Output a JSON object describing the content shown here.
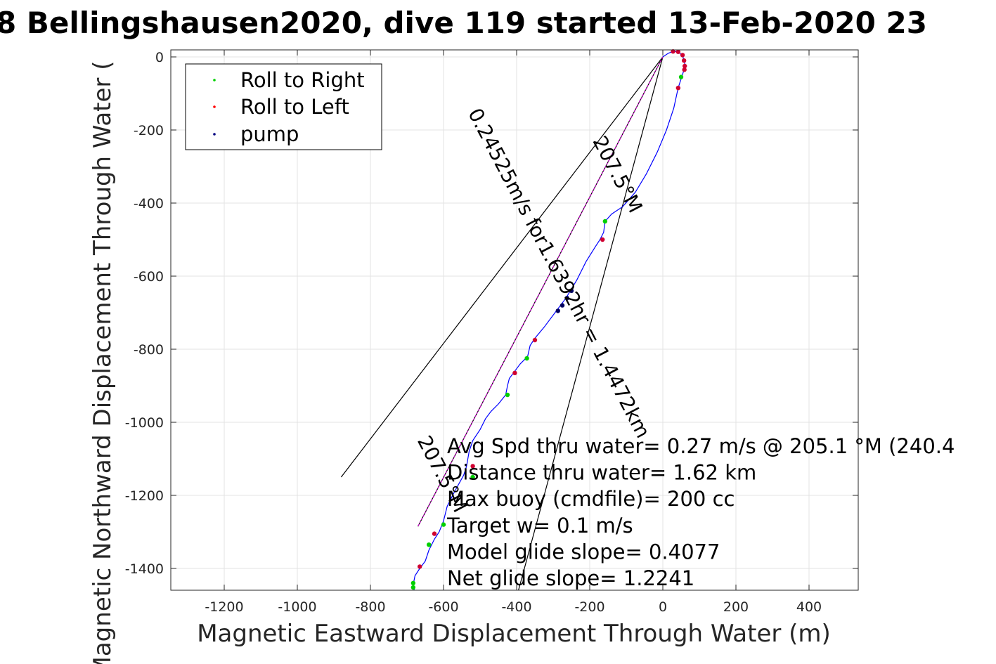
{
  "chart_data": {
    "type": "line",
    "title": "8 Bellingshausen2020, dive 119 started 13-Feb-2020 23",
    "xlabel": "Magnetic Eastward Displacement Through Water (m)",
    "ylabel": "Magnetic Northward Displacement Through Water (",
    "xlim": [
      -1340,
      540
    ],
    "ylim": [
      -1460,
      20
    ],
    "xticks": [
      -1200,
      -1000,
      -800,
      -600,
      -400,
      -200,
      0,
      200,
      400
    ],
    "yticks": [
      0,
      -200,
      -400,
      -600,
      -800,
      -1000,
      -1200,
      -1400
    ],
    "grid": true,
    "legend": {
      "position": "top-left",
      "entries": [
        {
          "label": "Roll to Right",
          "color": "#00d000"
        },
        {
          "label": "Roll to Left",
          "color": "#ff0000"
        },
        {
          "label": "pump",
          "color": "#000080"
        }
      ]
    },
    "track_color": "#0000ff",
    "roll_right_color": "#00d000",
    "roll_left_color": "#d00030",
    "pump_color": "#000060",
    "heading_line_color": "#000000",
    "avg_line_color": "#cc00cc",
    "track": [
      [
        0,
        0
      ],
      [
        15,
        10
      ],
      [
        30,
        16
      ],
      [
        45,
        12
      ],
      [
        55,
        0
      ],
      [
        60,
        -15
      ],
      [
        58,
        -35
      ],
      [
        50,
        -60
      ],
      [
        42,
        -85
      ],
      [
        30,
        -140
      ],
      [
        10,
        -200
      ],
      [
        -15,
        -260
      ],
      [
        -45,
        -320
      ],
      [
        -75,
        -370
      ],
      [
        -110,
        -410
      ],
      [
        -140,
        -430
      ],
      [
        -158,
        -450
      ],
      [
        -162,
        -480
      ],
      [
        -172,
        -500
      ],
      [
        -185,
        -520
      ],
      [
        -210,
        -560
      ],
      [
        -235,
        -610
      ],
      [
        -265,
        -660
      ],
      [
        -295,
        -700
      ],
      [
        -325,
        -740
      ],
      [
        -350,
        -770
      ],
      [
        -363,
        -790
      ],
      [
        -370,
        -820
      ],
      [
        -390,
        -840
      ],
      [
        -405,
        -860
      ],
      [
        -420,
        -880
      ],
      [
        -425,
        -900
      ],
      [
        -430,
        -925
      ],
      [
        -450,
        -950
      ],
      [
        -470,
        -970
      ],
      [
        -485,
        -990
      ],
      [
        -500,
        -1020
      ],
      [
        -520,
        -1050
      ],
      [
        -530,
        -1080
      ],
      [
        -537,
        -1120
      ],
      [
        -545,
        -1145
      ],
      [
        -570,
        -1190
      ],
      [
        -590,
        -1230
      ],
      [
        -600,
        -1270
      ],
      [
        -612,
        -1300
      ],
      [
        -625,
        -1320
      ],
      [
        -640,
        -1350
      ],
      [
        -650,
        -1380
      ],
      [
        -665,
        -1400
      ],
      [
        -678,
        -1420
      ],
      [
        -683,
        -1445
      ],
      [
        -680,
        -1460
      ]
    ],
    "roll_left_points": [
      [
        28,
        15
      ],
      [
        42,
        14
      ],
      [
        54,
        5
      ],
      [
        58,
        -10
      ],
      [
        60,
        -25
      ],
      [
        59,
        -35
      ],
      [
        42,
        -85
      ],
      [
        -165,
        -500
      ],
      [
        -350,
        -775
      ],
      [
        -405,
        -865
      ],
      [
        -520,
        -1120
      ],
      [
        -625,
        -1305
      ],
      [
        -665,
        -1395
      ]
    ],
    "roll_right_points": [
      [
        50,
        -55
      ],
      [
        -158,
        -450
      ],
      [
        -372,
        -825
      ],
      [
        -425,
        -925
      ],
      [
        -520,
        -1150
      ],
      [
        -600,
        -1280
      ],
      [
        -640,
        -1335
      ],
      [
        -683,
        -1440
      ],
      [
        -683,
        -1452
      ]
    ],
    "pump_points": [
      [
        -250,
        -640
      ],
      [
        -262,
        -660
      ],
      [
        -275,
        -680
      ],
      [
        -287,
        -695
      ]
    ],
    "heading_lines": [
      {
        "from": [
          0,
          0
        ],
        "to": [
          -880,
          -1150
        ]
      },
      {
        "from": [
          0,
          0
        ],
        "to": [
          -395,
          -1460
        ]
      },
      {
        "from": [
          0,
          0
        ],
        "to": [
          -670,
          -1285
        ]
      }
    ],
    "rotated_labels": [
      {
        "text": "207.5°M",
        "at": [
          -140,
          -330
        ],
        "angle": 62.4
      },
      {
        "text": "0.24525m/s for1.6392hr = 1.4472km",
        "at": [
          -300,
          -600
        ],
        "angle": 62.4
      },
      {
        "text": "207.5°M",
        "at": [
          -620,
          -1150
        ],
        "angle": 62.4
      }
    ],
    "annotations": [
      "Avg Spd thru water=  0.27 m/s @ 205.1 °M (240.4",
      "Distance thru water=  1.62 km",
      "Max buoy (cmdfile)= 200 cc",
      "Target w= 0.1 m/s",
      "Model glide slope= 0.4077",
      "Net glide slope= 1.2241"
    ]
  }
}
